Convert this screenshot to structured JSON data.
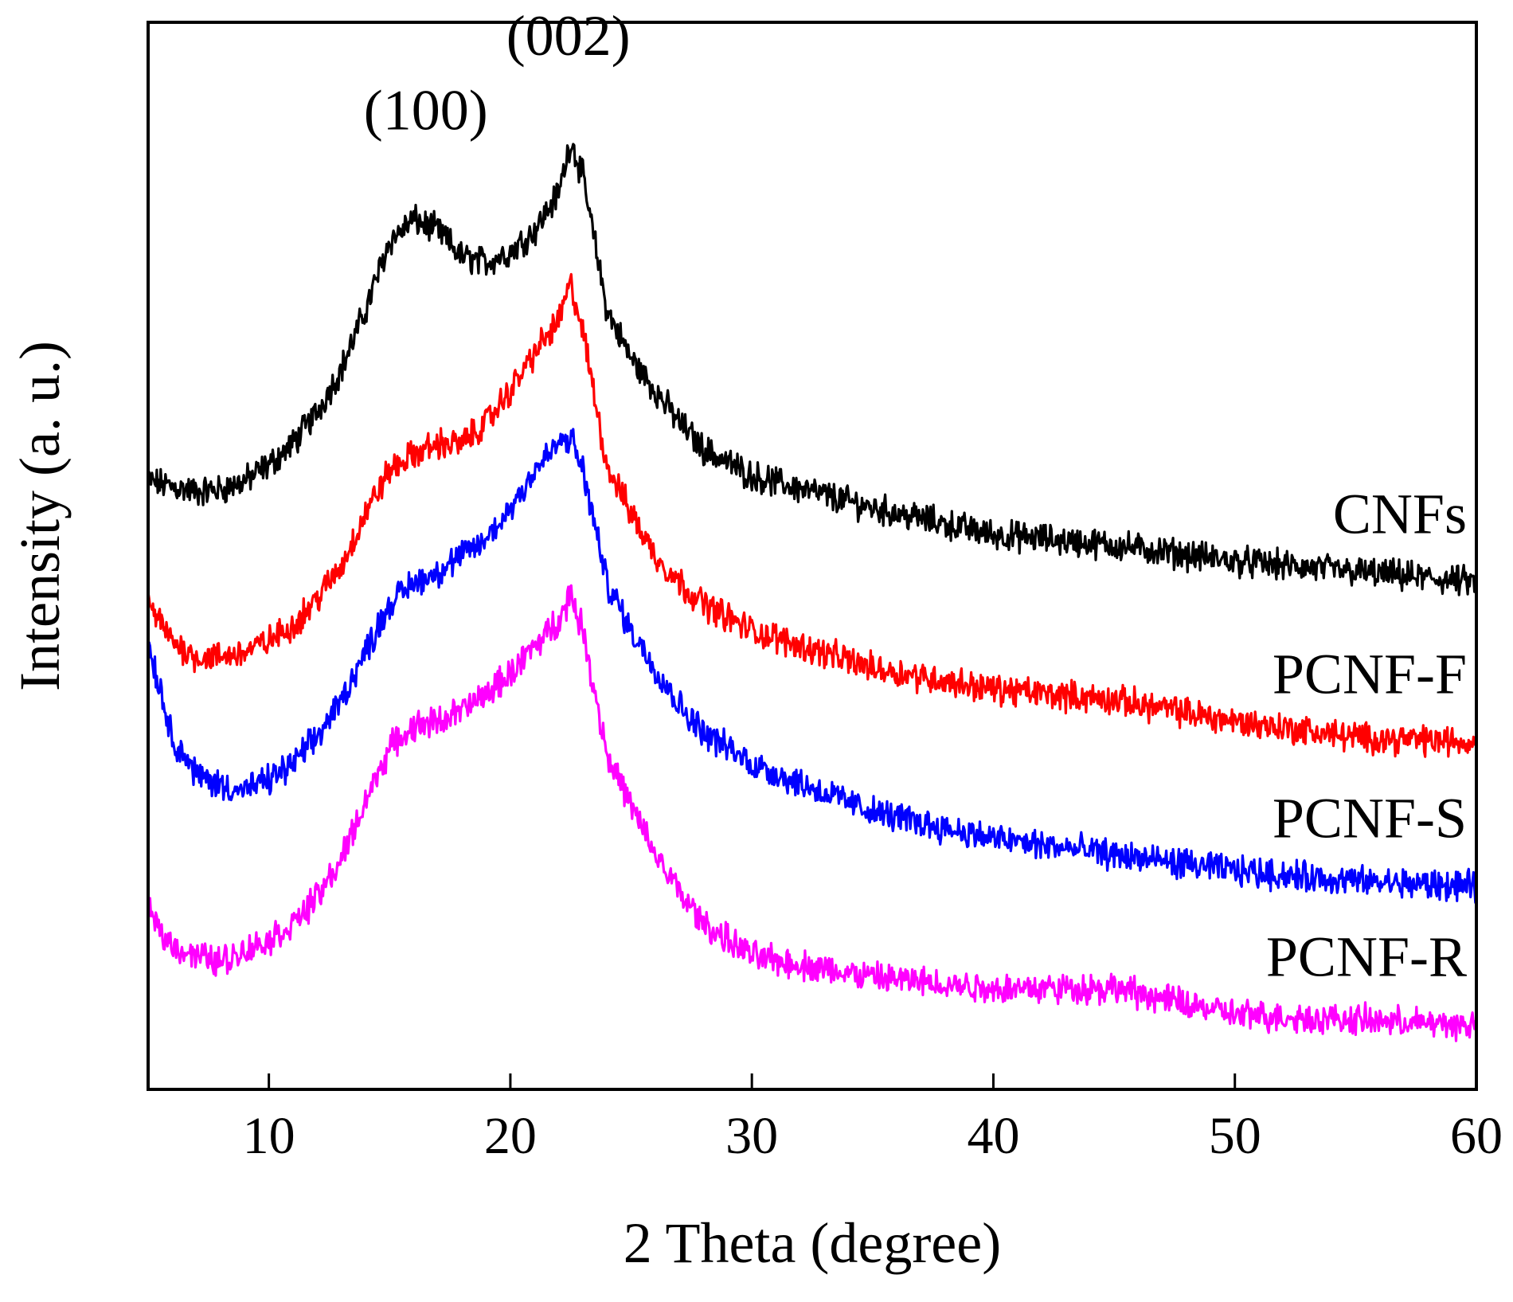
{
  "chart_data": {
    "type": "line",
    "title": "",
    "xlabel": "2 Theta (degree)",
    "ylabel": "Intensity (a. u.)",
    "xlim": [
      5,
      60
    ],
    "ylim": [
      0,
      10
    ],
    "x_ticks": [
      10,
      20,
      30,
      40,
      50,
      60
    ],
    "x_tick_labels": [
      "10",
      "20",
      "30",
      "40",
      "50",
      "60"
    ],
    "y_ticks_shown": false,
    "grid": false,
    "legend": "series labels at right end of each curve",
    "annotations": [
      {
        "text": "(100)",
        "x": 16.5
      },
      {
        "text": "(002)",
        "x": 22.4
      }
    ],
    "series": [
      {
        "name": "CNFs",
        "color": "#000000",
        "x": [
          5,
          6,
          7,
          8,
          9,
          10,
          11,
          12,
          13,
          14,
          15,
          16,
          17,
          18,
          19,
          20,
          21,
          22,
          22.5,
          23,
          24,
          25,
          26,
          27,
          28,
          30,
          35,
          40,
          45,
          50,
          55,
          60
        ],
        "values": [
          5.7,
          5.65,
          5.6,
          5.62,
          5.7,
          5.85,
          6.05,
          6.35,
          6.75,
          7.3,
          7.95,
          8.15,
          8.05,
          7.8,
          7.75,
          7.85,
          8.05,
          8.4,
          8.9,
          8.55,
          7.3,
          6.85,
          6.55,
          6.25,
          6.0,
          5.75,
          5.45,
          5.2,
          5.1,
          4.95,
          4.85,
          4.75
        ]
      },
      {
        "name": "PCNF-F",
        "color": "#ff0000",
        "x": [
          5,
          6,
          7,
          8,
          9,
          10,
          11,
          12,
          13,
          14,
          15,
          16,
          17,
          18,
          19,
          20,
          21,
          22,
          22.5,
          23,
          24,
          25,
          26,
          27,
          28,
          30,
          35,
          40,
          45,
          50,
          55,
          60
        ],
        "values": [
          4.55,
          4.2,
          4.05,
          4.05,
          4.1,
          4.2,
          4.35,
          4.6,
          4.9,
          5.4,
          5.8,
          5.95,
          6.05,
          6.05,
          6.25,
          6.55,
          6.9,
          7.2,
          7.55,
          7.1,
          5.85,
          5.4,
          5.0,
          4.75,
          4.55,
          4.3,
          3.95,
          3.75,
          3.65,
          3.45,
          3.3,
          3.25
        ]
      },
      {
        "name": "PCNF-S",
        "color": "#0000ff",
        "x": [
          5,
          6,
          7,
          8,
          9,
          10,
          11,
          12,
          13,
          14,
          15,
          16,
          17,
          18,
          19,
          20,
          21,
          22,
          22.5,
          23,
          24,
          25,
          26,
          27,
          28,
          30,
          35,
          40,
          45,
          50,
          55,
          60
        ],
        "values": [
          4.2,
          3.3,
          2.95,
          2.85,
          2.8,
          2.9,
          3.05,
          3.3,
          3.65,
          4.1,
          4.55,
          4.75,
          4.85,
          5.0,
          5.15,
          5.45,
          5.8,
          6.05,
          6.1,
          5.8,
          4.75,
          4.3,
          3.95,
          3.6,
          3.35,
          3.05,
          2.6,
          2.35,
          2.2,
          2.05,
          1.95,
          1.9
        ]
      },
      {
        "name": "PCNF-R",
        "color": "#ff00ff",
        "x": [
          5,
          6,
          7,
          8,
          9,
          10,
          11,
          12,
          13,
          14,
          15,
          16,
          17,
          18,
          19,
          20,
          21,
          22,
          22.5,
          23,
          24,
          25,
          26,
          27,
          28,
          30,
          35,
          40,
          45,
          50,
          55,
          60
        ],
        "values": [
          1.65,
          1.35,
          1.25,
          1.2,
          1.3,
          1.4,
          1.55,
          1.8,
          2.15,
          2.7,
          3.2,
          3.4,
          3.45,
          3.55,
          3.7,
          3.9,
          4.15,
          4.4,
          4.65,
          4.3,
          3.15,
          2.65,
          2.2,
          1.85,
          1.55,
          1.25,
          1.05,
          0.95,
          0.95,
          0.7,
          0.65,
          0.6
        ]
      }
    ]
  }
}
